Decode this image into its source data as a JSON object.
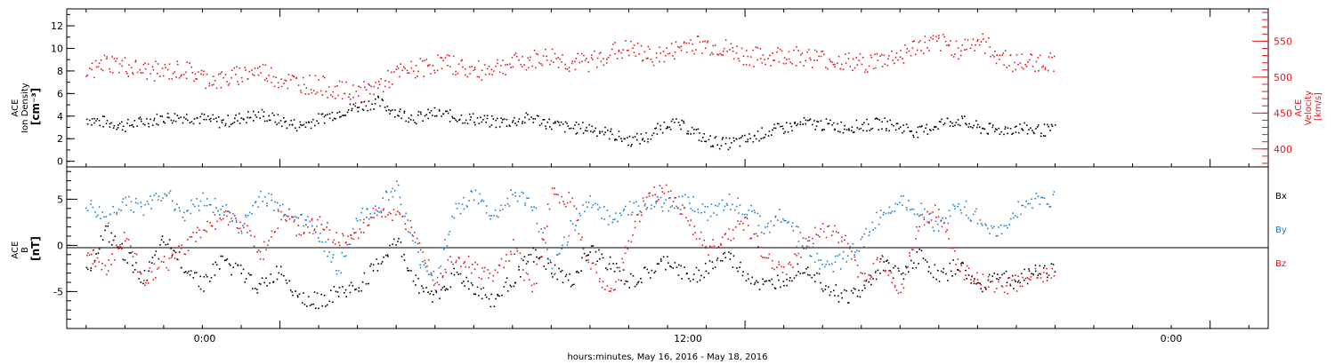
{
  "xlabel": "hours:minutes, May 16, 2016 - May 18, 2016",
  "x_ticks": [
    "0:00",
    "12:00",
    "0:00"
  ],
  "colors": {
    "black": "#000000",
    "blue": "#1a7fd1",
    "red": "#e01a1a"
  },
  "chart_data": [
    {
      "type": "scatter",
      "panel": "top",
      "ylabel_left": [
        "ACE",
        "Ion Density",
        "[cm⁻³]"
      ],
      "ylabel_right": [
        "ACE",
        "Velocity",
        "[km/s]"
      ],
      "ylim_left": [
        -0.5,
        13.5
      ],
      "yticks_left": [
        "0",
        "2",
        "4",
        "6",
        "8",
        "10",
        "12"
      ],
      "ylim_right": [
        375,
        595
      ],
      "yticks_right": [
        "400",
        "450",
        "500",
        "550"
      ],
      "xlim_hours": [
        -5.5,
        25.5
      ],
      "series": [
        {
          "key": "density",
          "axis": "left",
          "color": "#000000",
          "x": [
            -5.0,
            -4.5,
            -4.0,
            -3.5,
            -3.0,
            -2.5,
            -2.0,
            -1.5,
            -1.0,
            -0.5,
            0.0,
            0.5,
            1.0,
            1.5,
            2.0,
            2.5,
            3.0,
            3.5,
            4.0,
            4.5,
            5.0,
            5.5,
            6.0,
            6.5,
            7.0,
            7.5,
            8.0,
            8.5,
            9.0,
            9.5,
            10.0,
            10.5,
            11.0,
            11.5,
            12.0,
            12.5,
            13.0,
            13.5,
            14.0,
            14.5,
            15.0,
            15.5,
            16.0,
            16.5,
            17.0,
            17.5,
            18.0,
            18.5,
            19.0,
            19.5
          ],
          "y": [
            3.8,
            3.5,
            3.2,
            3.6,
            3.9,
            4.0,
            3.8,
            3.5,
            3.9,
            4.2,
            3.6,
            3.2,
            3.8,
            4.4,
            4.9,
            5.3,
            4.4,
            3.9,
            4.3,
            4.0,
            3.8,
            3.5,
            3.6,
            3.9,
            3.3,
            3.0,
            3.0,
            2.5,
            1.9,
            2.2,
            3.5,
            3.0,
            1.9,
            1.6,
            1.9,
            2.6,
            3.0,
            3.4,
            3.3,
            3.1,
            3.2,
            3.4,
            3.1,
            2.6,
            3.4,
            3.7,
            3.0,
            2.8,
            3.0,
            2.8
          ]
        },
        {
          "key": "velocity",
          "axis": "right",
          "color": "#e01a1a",
          "x": [
            -5.0,
            -4.5,
            -4.0,
            -3.5,
            -3.0,
            -2.5,
            -2.0,
            -1.5,
            -1.0,
            -0.5,
            0.0,
            0.5,
            1.0,
            1.5,
            2.0,
            2.5,
            3.0,
            3.5,
            4.0,
            4.5,
            5.0,
            5.5,
            6.0,
            6.5,
            7.0,
            7.5,
            8.0,
            8.5,
            9.0,
            9.5,
            10.0,
            10.5,
            11.0,
            11.5,
            12.0,
            12.5,
            13.0,
            13.5,
            14.0,
            14.5,
            15.0,
            15.5,
            16.0,
            16.5,
            17.0,
            17.5,
            18.0,
            18.5,
            19.0,
            19.5
          ],
          "y": [
            505,
            522,
            516,
            510,
            508,
            512,
            500,
            496,
            505,
            510,
            498,
            492,
            490,
            482,
            478,
            488,
            505,
            512,
            520,
            518,
            508,
            515,
            520,
            525,
            530,
            520,
            522,
            535,
            540,
            530,
            533,
            548,
            545,
            540,
            530,
            528,
            532,
            530,
            526,
            522,
            520,
            524,
            532,
            545,
            548,
            540,
            552,
            532,
            520,
            522
          ]
        }
      ]
    },
    {
      "type": "scatter",
      "panel": "bottom",
      "ylabel_left": [
        "ACE",
        "B",
        "[nT]"
      ],
      "ylim_left": [
        -9,
        8.5
      ],
      "yticks_left": [
        "-5",
        "0",
        "5"
      ],
      "xlim_hours": [
        -5.5,
        25.5
      ],
      "legend": [
        "Bx",
        "By",
        "Bz"
      ],
      "legend_placement": "right",
      "series": [
        {
          "key": "Bx",
          "color": "#000000",
          "x": [
            -5.0,
            -4.5,
            -4.0,
            -3.5,
            -3.0,
            -2.5,
            -2.0,
            -1.5,
            -1.0,
            -0.5,
            0.0,
            0.5,
            1.0,
            1.5,
            2.0,
            2.5,
            3.0,
            3.5,
            4.0,
            4.5,
            5.0,
            5.5,
            6.0,
            6.5,
            7.0,
            7.5,
            8.0,
            8.5,
            9.0,
            9.5,
            10.0,
            10.5,
            11.0,
            11.5,
            12.0,
            12.5,
            13.0,
            13.5,
            14.0,
            14.5,
            15.0,
            15.5,
            16.0,
            16.5,
            17.0,
            17.5,
            18.0,
            18.5,
            19.0,
            19.5
          ],
          "y": [
            -2.5,
            1.5,
            -1.0,
            -3.5,
            0.5,
            -2.0,
            -4.0,
            -1.5,
            -3.0,
            -4.5,
            -2.5,
            -5.5,
            -6.0,
            -5.0,
            -4.5,
            -2.0,
            0.5,
            -4.0,
            -5.5,
            -3.0,
            -4.5,
            -6.0,
            -3.5,
            -1.0,
            -2.5,
            -4.0,
            -0.5,
            -2.0,
            -4.0,
            -3.0,
            -1.5,
            -3.5,
            -2.5,
            -1.0,
            -3.0,
            -4.5,
            -3.5,
            -2.0,
            -4.0,
            -5.5,
            -5.0,
            -2.0,
            -3.0,
            -1.0,
            -3.5,
            -2.0,
            -4.5,
            -3.0,
            -4.0,
            -2.5
          ]
        },
        {
          "key": "By",
          "color": "#1a7fd1",
          "x": [
            -5.0,
            -4.5,
            -4.0,
            -3.5,
            -3.0,
            -2.5,
            -2.0,
            -1.5,
            -1.0,
            -0.5,
            0.0,
            0.5,
            1.0,
            1.5,
            2.0,
            2.5,
            3.0,
            3.5,
            4.0,
            4.5,
            5.0,
            5.5,
            6.0,
            6.5,
            7.0,
            7.5,
            8.0,
            8.5,
            9.0,
            9.5,
            10.0,
            10.5,
            11.0,
            11.5,
            12.0,
            12.5,
            13.0,
            13.5,
            14.0,
            14.5,
            15.0,
            15.5,
            16.0,
            16.5,
            17.0,
            17.5,
            18.0,
            18.5,
            19.0,
            19.5
          ],
          "y": [
            4.5,
            3.0,
            5.0,
            4.0,
            6.0,
            3.5,
            5.0,
            4.0,
            2.0,
            5.5,
            4.0,
            3.5,
            1.0,
            -2.5,
            3.0,
            4.0,
            6.5,
            -1.0,
            -3.5,
            4.0,
            5.5,
            3.0,
            5.5,
            4.5,
            -3.0,
            2.0,
            5.0,
            3.0,
            4.0,
            4.5,
            4.5,
            5.0,
            3.5,
            5.0,
            4.0,
            2.0,
            3.5,
            0.5,
            -2.5,
            -1.5,
            0.5,
            3.5,
            5.0,
            4.0,
            2.0,
            4.5,
            3.0,
            1.0,
            4.0,
            5.0
          ]
        },
        {
          "key": "Bz",
          "color": "#e01a1a",
          "x": [
            -5.0,
            -4.5,
            -4.0,
            -3.5,
            -3.0,
            -2.5,
            -2.0,
            -1.5,
            -1.0,
            -0.5,
            0.0,
            0.5,
            1.0,
            1.5,
            2.0,
            2.5,
            3.0,
            3.5,
            4.0,
            4.5,
            5.0,
            5.5,
            6.0,
            6.5,
            7.0,
            7.5,
            8.0,
            8.5,
            9.0,
            9.5,
            10.0,
            10.5,
            11.0,
            11.5,
            12.0,
            12.5,
            13.0,
            13.5,
            14.0,
            14.5,
            15.0,
            15.5,
            16.0,
            16.5,
            17.0,
            17.5,
            18.0,
            18.5,
            19.0,
            19.5
          ],
          "y": [
            -1.0,
            -2.5,
            1.0,
            -3.5,
            -2.0,
            -0.5,
            2.0,
            3.0,
            2.5,
            -1.0,
            3.5,
            1.5,
            2.5,
            0.5,
            1.0,
            4.0,
            3.0,
            1.5,
            -4.0,
            -1.0,
            -2.5,
            -3.5,
            0.0,
            -5.0,
            5.5,
            5.0,
            -2.0,
            -5.5,
            0.5,
            5.5,
            6.0,
            3.0,
            -0.5,
            1.0,
            2.5,
            -1.0,
            -2.5,
            0.0,
            2.0,
            1.0,
            -3.5,
            -1.5,
            -5.0,
            2.5,
            4.0,
            -2.5,
            -3.5,
            -4.5,
            -4.0,
            -3.0
          ]
        }
      ]
    }
  ]
}
